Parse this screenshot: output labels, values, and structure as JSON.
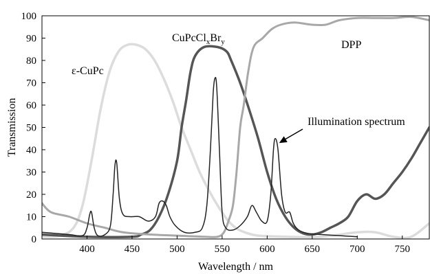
{
  "chart_data": {
    "type": "line",
    "title": "",
    "xlabel": "Wavelength / nm",
    "ylabel": "Transmission",
    "xlim": [
      350,
      780
    ],
    "ylim": [
      0,
      100
    ],
    "xticks": [
      400,
      450,
      500,
      550,
      600,
      650,
      700,
      750
    ],
    "yticks": [
      0,
      10,
      20,
      30,
      40,
      50,
      60,
      70,
      80,
      90,
      100
    ],
    "grid": false,
    "legend": "none",
    "annotations": [
      {
        "id": "eps",
        "text": "ε-CuPc",
        "color": "#000000"
      },
      {
        "id": "cupccl",
        "text_main": "CuPcCl",
        "sub1": "x",
        "mid": "Br",
        "sub2": "y",
        "color": "#000000"
      },
      {
        "id": "dpp",
        "text": "DPP",
        "color": "#000000"
      },
      {
        "id": "illum",
        "text": "Illumination spectrum",
        "color": "#000000"
      }
    ],
    "series": [
      {
        "id": "eps-cupc",
        "color": "#dcdcdc",
        "width": 3.5,
        "points": [
          [
            350,
            1
          ],
          [
            370,
            1.5
          ],
          [
            385,
            5
          ],
          [
            395,
            15
          ],
          [
            405,
            35
          ],
          [
            415,
            58
          ],
          [
            425,
            75
          ],
          [
            435,
            84
          ],
          [
            445,
            87
          ],
          [
            455,
            87
          ],
          [
            465,
            85
          ],
          [
            475,
            80
          ],
          [
            485,
            72
          ],
          [
            495,
            62
          ],
          [
            505,
            50
          ],
          [
            515,
            40
          ],
          [
            525,
            30
          ],
          [
            535,
            22
          ],
          [
            545,
            15
          ],
          [
            555,
            9
          ],
          [
            565,
            5
          ],
          [
            575,
            3
          ],
          [
            590,
            1.5
          ],
          [
            620,
            1
          ],
          [
            660,
            1
          ],
          [
            700,
            3
          ],
          [
            720,
            3
          ],
          [
            740,
            1
          ],
          [
            760,
            1
          ],
          [
            780,
            7
          ]
        ]
      },
      {
        "id": "cupcclxbry",
        "color": "#555555",
        "width": 3.5,
        "points": [
          [
            350,
            2
          ],
          [
            400,
            1
          ],
          [
            450,
            1
          ],
          [
            460,
            2
          ],
          [
            470,
            4
          ],
          [
            480,
            10
          ],
          [
            490,
            20
          ],
          [
            500,
            35
          ],
          [
            505,
            50
          ],
          [
            510,
            62
          ],
          [
            515,
            75
          ],
          [
            520,
            82
          ],
          [
            530,
            86
          ],
          [
            545,
            86
          ],
          [
            555,
            84
          ],
          [
            560,
            80
          ],
          [
            570,
            70
          ],
          [
            580,
            58
          ],
          [
            590,
            45
          ],
          [
            600,
            30
          ],
          [
            610,
            18
          ],
          [
            620,
            10
          ],
          [
            630,
            5
          ],
          [
            640,
            2.5
          ],
          [
            650,
            2
          ],
          [
            660,
            3
          ],
          [
            670,
            5
          ],
          [
            680,
            7
          ],
          [
            690,
            10
          ],
          [
            700,
            17
          ],
          [
            710,
            20
          ],
          [
            720,
            18
          ],
          [
            730,
            20
          ],
          [
            740,
            25
          ],
          [
            750,
            30
          ],
          [
            760,
            36
          ],
          [
            770,
            43
          ],
          [
            780,
            50
          ]
        ]
      },
      {
        "id": "dpp",
        "color": "#a8a8a8",
        "width": 3,
        "points": [
          [
            350,
            16
          ],
          [
            360,
            12
          ],
          [
            380,
            10
          ],
          [
            400,
            7
          ],
          [
            420,
            5
          ],
          [
            440,
            3
          ],
          [
            470,
            2
          ],
          [
            500,
            1.5
          ],
          [
            530,
            1
          ],
          [
            545,
            1
          ],
          [
            552,
            3
          ],
          [
            557,
            8
          ],
          [
            562,
            15
          ],
          [
            566,
            30
          ],
          [
            570,
            50
          ],
          [
            574,
            60
          ],
          [
            579,
            75
          ],
          [
            585,
            86
          ],
          [
            595,
            90
          ],
          [
            605,
            94
          ],
          [
            615,
            96
          ],
          [
            630,
            97
          ],
          [
            650,
            96
          ],
          [
            665,
            96
          ],
          [
            680,
            98
          ],
          [
            700,
            99
          ],
          [
            720,
            99
          ],
          [
            740,
            99
          ],
          [
            760,
            99.5
          ],
          [
            780,
            98
          ]
        ]
      },
      {
        "id": "illumination",
        "color": "#222222",
        "width": 1.5,
        "points": [
          [
            350,
            3
          ],
          [
            380,
            2
          ],
          [
            395,
            1.5
          ],
          [
            400,
            5
          ],
          [
            403,
            11
          ],
          [
            405,
            12
          ],
          [
            408,
            5
          ],
          [
            412,
            1.5
          ],
          [
            420,
            2
          ],
          [
            426,
            6
          ],
          [
            429,
            20
          ],
          [
            431,
            33
          ],
          [
            433,
            34
          ],
          [
            436,
            18
          ],
          [
            440,
            11
          ],
          [
            448,
            10
          ],
          [
            458,
            10
          ],
          [
            468,
            8
          ],
          [
            476,
            10
          ],
          [
            480,
            16
          ],
          [
            484,
            17
          ],
          [
            488,
            15
          ],
          [
            492,
            10
          ],
          [
            498,
            6
          ],
          [
            508,
            3
          ],
          [
            520,
            3
          ],
          [
            528,
            5
          ],
          [
            533,
            15
          ],
          [
            537,
            40
          ],
          [
            540,
            65
          ],
          [
            542,
            72
          ],
          [
            544,
            68
          ],
          [
            547,
            40
          ],
          [
            550,
            12
          ],
          [
            554,
            5
          ],
          [
            562,
            4
          ],
          [
            570,
            6
          ],
          [
            578,
            10
          ],
          [
            583,
            15
          ],
          [
            588,
            12
          ],
          [
            594,
            8
          ],
          [
            600,
            8
          ],
          [
            604,
            20
          ],
          [
            607,
            40
          ],
          [
            609,
            45
          ],
          [
            612,
            40
          ],
          [
            616,
            20
          ],
          [
            620,
            12
          ],
          [
            625,
            12
          ],
          [
            629,
            7
          ],
          [
            635,
            4
          ],
          [
            645,
            2.5
          ],
          [
            660,
            2
          ],
          [
            680,
            1.5
          ],
          [
            700,
            1
          ]
        ]
      }
    ]
  }
}
